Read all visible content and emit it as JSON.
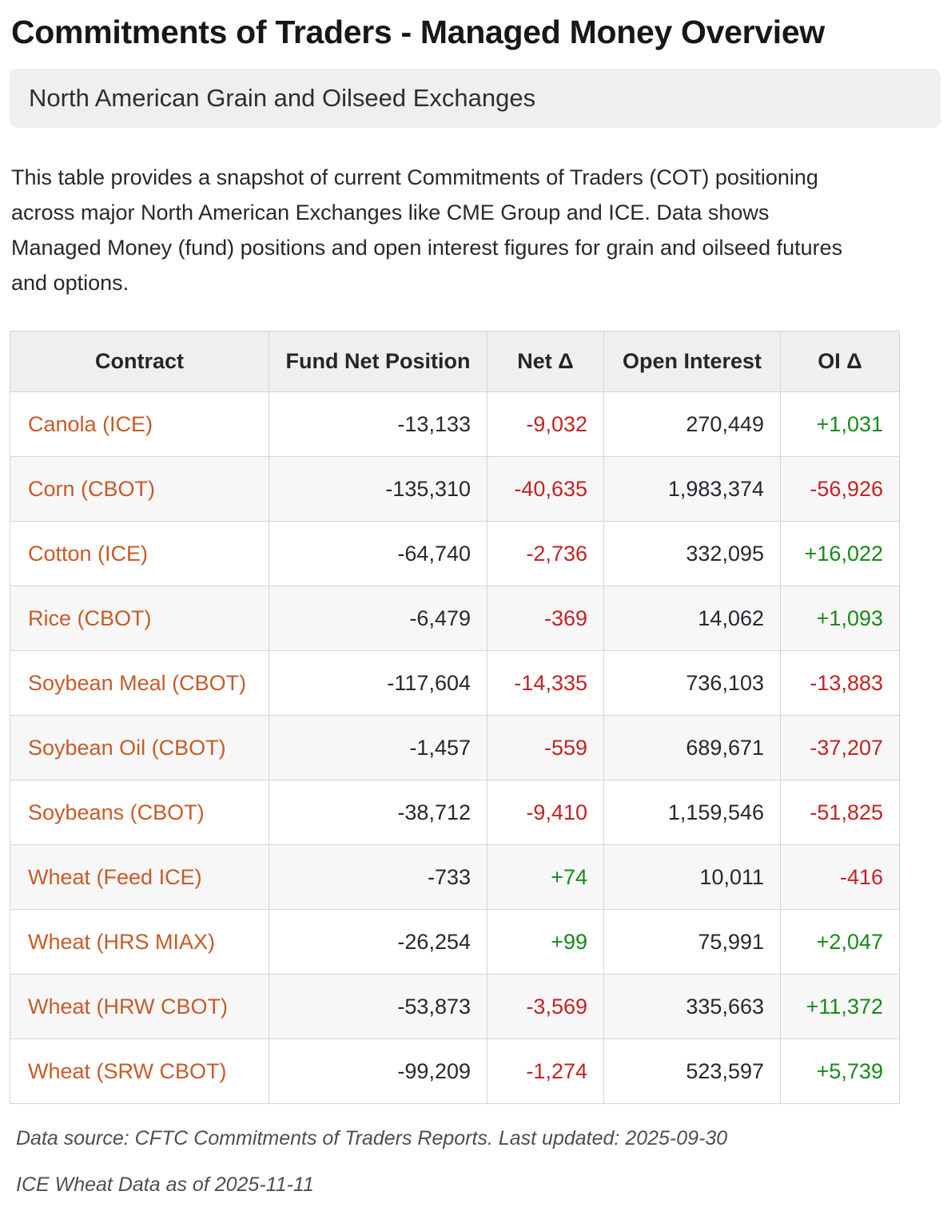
{
  "colors": {
    "contract": "#c75b28",
    "positive": "#178a17",
    "negative": "#c42323"
  },
  "page": {
    "title": "Commitments of Traders - Managed Money Overview",
    "subtitle": "North American Grain and Oilseed Exchanges",
    "description": "This table provides a snapshot of current Commitments of Traders (COT) positioning across major North American Exchanges like CME Group and ICE. Data shows Managed Money (fund) positions and open interest figures for grain and oilseed futures and options.",
    "footnotes": [
      "Data source: CFTC Commitments of Traders Reports. Last updated: 2025-09-30",
      "ICE Wheat Data as of 2025-11-11"
    ]
  },
  "table": {
    "columns": [
      "Contract",
      "Fund Net Position",
      "Net Δ",
      "Open Interest",
      "OI Δ"
    ],
    "rows": [
      [
        "Canola (ICE)",
        "-13,133",
        "-9,032",
        "270,449",
        "+1,031"
      ],
      [
        "Corn (CBOT)",
        "-135,310",
        "-40,635",
        "1,983,374",
        "-56,926"
      ],
      [
        "Cotton (ICE)",
        "-64,740",
        "-2,736",
        "332,095",
        "+16,022"
      ],
      [
        "Rice (CBOT)",
        "-6,479",
        "-369",
        "14,062",
        "+1,093"
      ],
      [
        "Soybean Meal (CBOT)",
        "-117,604",
        "-14,335",
        "736,103",
        "-13,883"
      ],
      [
        "Soybean Oil (CBOT)",
        "-1,457",
        "-559",
        "689,671",
        "-37,207"
      ],
      [
        "Soybeans (CBOT)",
        "-38,712",
        "-9,410",
        "1,159,546",
        "-51,825"
      ],
      [
        "Wheat (Feed ICE)",
        "-733",
        "+74",
        "10,011",
        "-416"
      ],
      [
        "Wheat (HRS MIAX)",
        "-26,254",
        "+99",
        "75,991",
        "+2,047"
      ],
      [
        "Wheat (HRW CBOT)",
        "-53,873",
        "-3,569",
        "335,663",
        "+11,372"
      ],
      [
        "Wheat (SRW CBOT)",
        "-99,209",
        "-1,274",
        "523,597",
        "+5,739"
      ]
    ]
  }
}
